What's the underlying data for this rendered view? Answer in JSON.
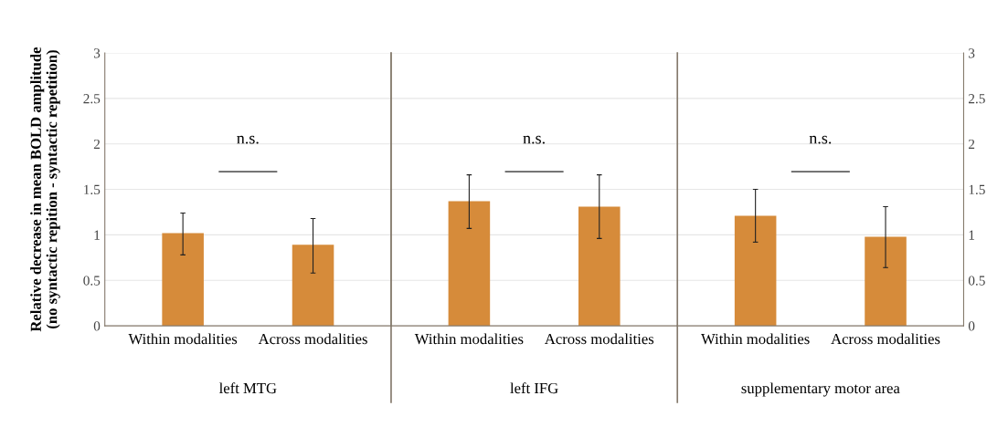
{
  "chart_data": [
    {
      "type": "bar",
      "categories": [
        "Within modalities",
        "Across modalities"
      ],
      "values": [
        1.02,
        0.89
      ],
      "errors": [
        [
          0.78,
          1.24
        ],
        [
          0.58,
          1.18
        ]
      ],
      "color": "#d68b3a",
      "xlabel": "left MTG",
      "ylabel": "Relative decrease in mean BOLD amplitude\n(no syntactic repition - syntactic repetition)",
      "ylim": [
        0,
        3
      ],
      "yticks": [
        0,
        0.5,
        1,
        1.5,
        2,
        2.5,
        3
      ],
      "grid": "y",
      "annotations": [
        "n.s."
      ]
    },
    {
      "type": "bar",
      "categories": [
        "Within modalities",
        "Across modalities"
      ],
      "values": [
        1.37,
        1.31
      ],
      "errors": [
        [
          1.07,
          1.66
        ],
        [
          0.96,
          1.66
        ]
      ],
      "color": "#d68b3a",
      "xlabel": "left IFG",
      "ylim": [
        0,
        3
      ],
      "yticks": [
        0,
        0.5,
        1,
        1.5,
        2,
        2.5,
        3
      ],
      "grid": "y",
      "tick_labels": "x",
      "annotations": [
        "n.s."
      ]
    },
    {
      "type": "bar",
      "categories": [
        "Within modalities",
        "Across modalities"
      ],
      "values": [
        1.21,
        0.98
      ],
      "errors": [
        [
          0.92,
          1.5
        ],
        [
          0.64,
          1.31
        ]
      ],
      "color": "#d68b3a",
      "xlabel": "supplementary motor area",
      "ylim": [
        0,
        3
      ],
      "yticks": [
        0,
        0.5,
        1,
        1.5,
        2,
        2.5,
        3
      ],
      "grid": "y",
      "annotations": [
        "n.s."
      ]
    }
  ]
}
